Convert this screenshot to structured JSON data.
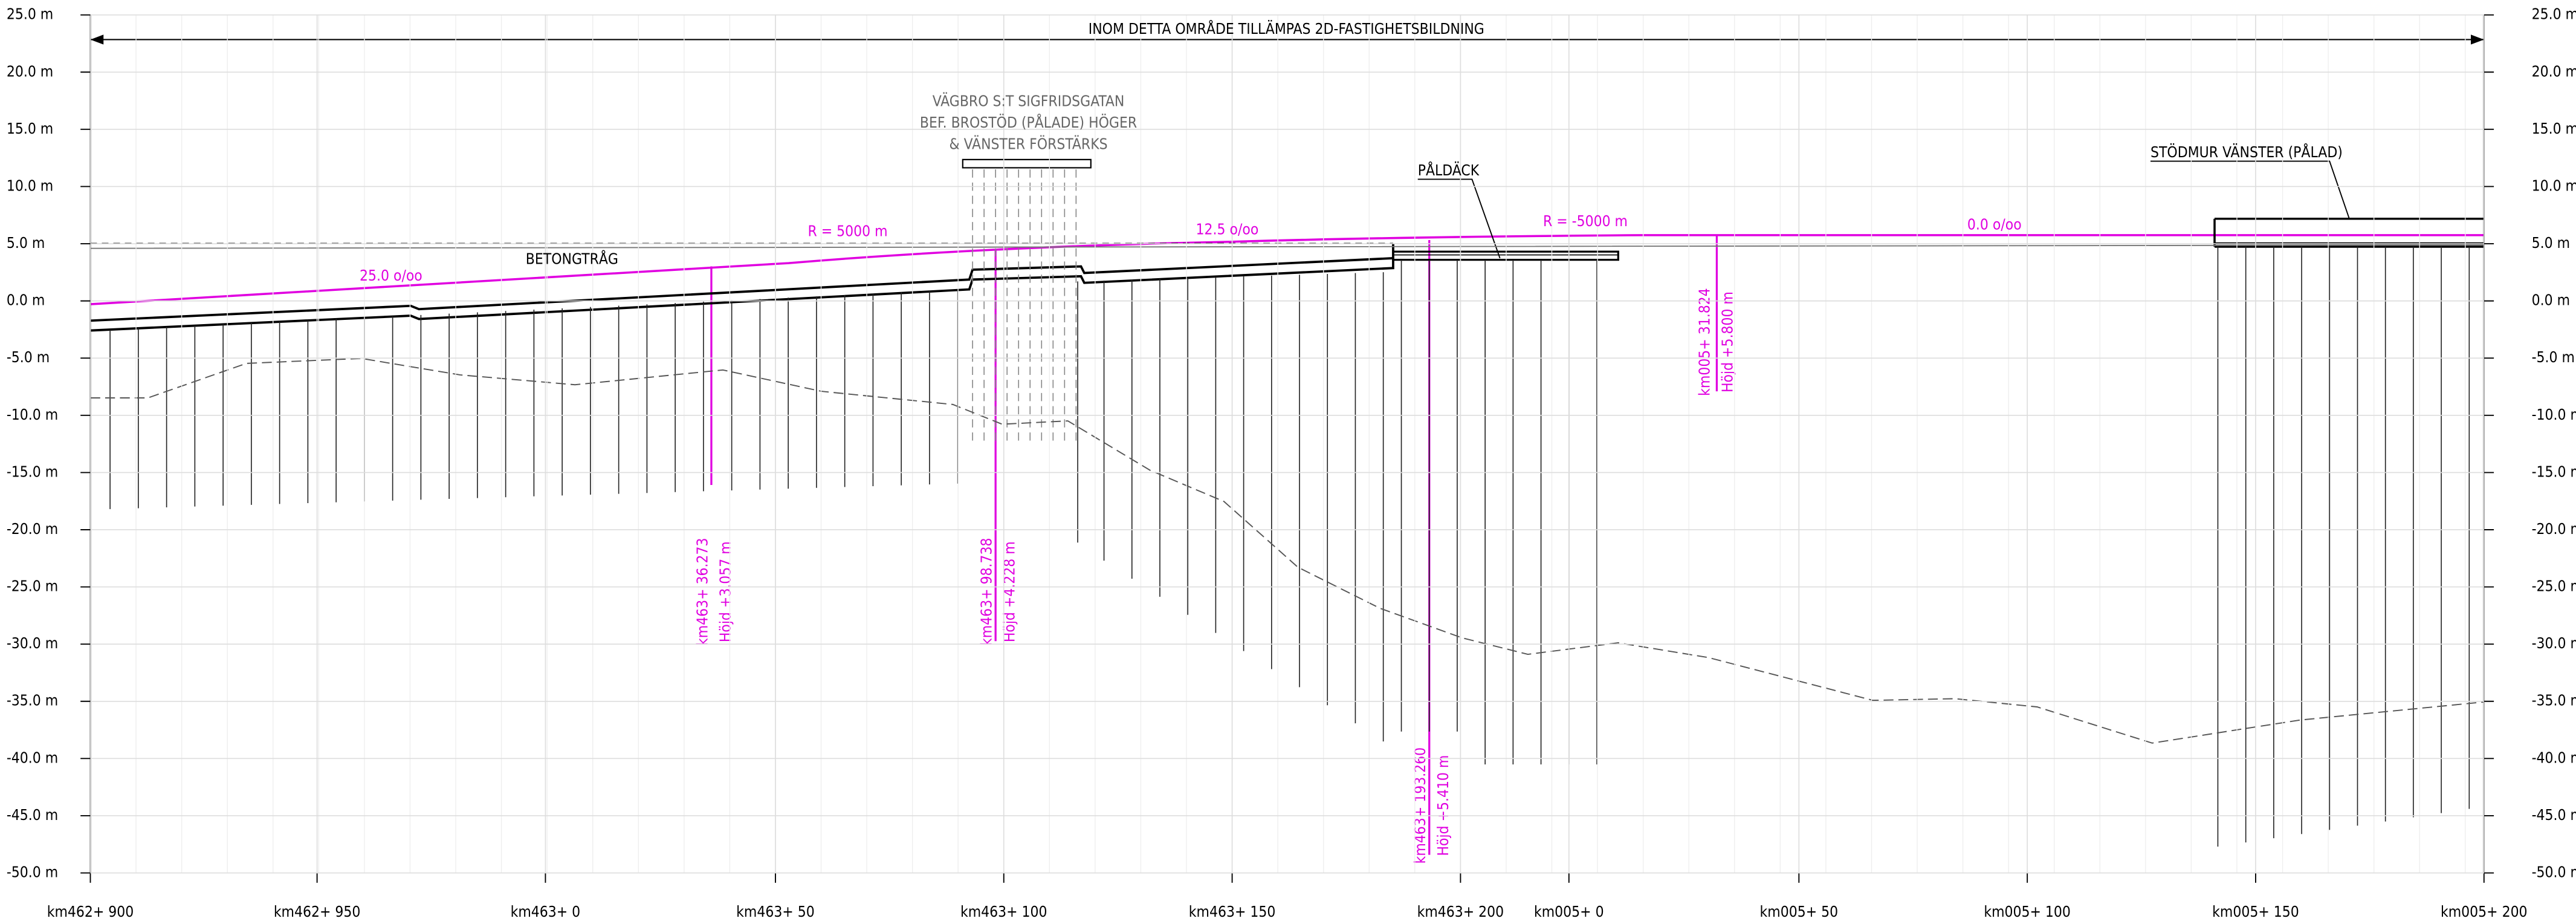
{
  "title": "INOM DETTA OMRÅDE TILLÄMPAS 2D-FASTIGHETSBILDNING",
  "elevation_labels": [
    "25.0 m",
    "20.0 m",
    "15.0 m",
    "10.0 m",
    "5.0 m",
    "0.0 m",
    "-5.0 m",
    "-10.0 m",
    "-15.0 m",
    "-20.0 m",
    "-25.0 m",
    "-30.0 m",
    "-35.0 m",
    "-40.0 m",
    "-45.0 m",
    "-50.0 m"
  ],
  "station_labels": [
    "km462+ 900",
    "km462+ 950",
    "km463+ 0",
    "km463+ 50",
    "km463+ 100",
    "km463+ 150",
    "km463+ 200",
    "km005+ 0",
    "km005+ 50",
    "km005+ 100",
    "km005+ 150",
    "km005+ 200"
  ],
  "bridge": {
    "lines": [
      "VÄGBRO S:T SIGFRIDSGATAN",
      "BEF. BROSTÖD (PÅLADE) HÖGER",
      "& VÄNSTER FÖRSTÄRKS"
    ]
  },
  "labels": {
    "paldack": "PÅLDÄCK",
    "stodmur": "STÖDMUR VÄNSTER (PÅLAD)",
    "betongtrag": "BETONGTRÅG"
  },
  "grade": {
    "slope1": "25.0 o/oo",
    "radius1": "R = 5000 m",
    "slope2": "12.5 o/oo",
    "radius2": "R = -5000 m",
    "slope3": "0.0 o/oo"
  },
  "points": [
    {
      "station": "km463+ 36.273",
      "height": "Höjd +3.057 m"
    },
    {
      "station": "km463+ 98.738",
      "height": "Höjd +4.228 m"
    },
    {
      "station": "km463+ 193.260",
      "height": "Höjd +5.410 m"
    },
    {
      "station": "km005+ 31.824",
      "height": "Höjd +5.800 m"
    }
  ]
}
